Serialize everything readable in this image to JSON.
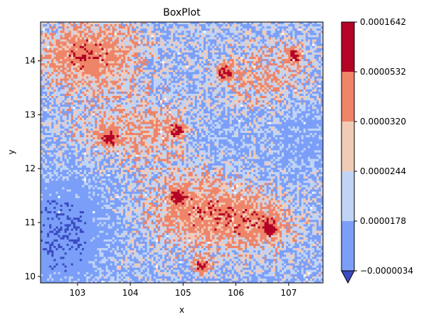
{
  "chart_data": {
    "type": "heatmap",
    "title": "BoxPlot",
    "xlabel": "x",
    "ylabel": "y",
    "xlim": [
      102.3,
      107.65
    ],
    "ylim": [
      9.88,
      14.72
    ],
    "x_ticks": [
      103,
      104,
      105,
      106,
      107
    ],
    "x_tick_labels": [
      "103",
      "104",
      "105",
      "106",
      "107"
    ],
    "y_ticks": [
      10,
      11,
      12,
      13,
      14
    ],
    "y_tick_labels": [
      "10",
      "11",
      "12",
      "13",
      "14"
    ],
    "grid": false,
    "colormap": "coolwarm (discrete, 6 levels)",
    "colorbar": {
      "position": "right",
      "extend": "min",
      "boundaries": [
        -3.4e-06,
        1.78e-05,
        2.44e-05,
        3.2e-05,
        5.32e-05,
        0.0001642
      ],
      "tick_labels": [
        "−0.0000034",
        "0.0000178",
        "0.0000244",
        "0.0000320",
        "0.0000532",
        "0.0001642"
      ],
      "level_colors": [
        "#7b9ff9",
        "#c0d4f5",
        "#f2cbb7",
        "#ee8468",
        "#b40426"
      ],
      "extend_color": "#3b4cc0"
    },
    "grid_resolution": [
      130,
      120
    ],
    "hotspots": [
      {
        "x": 103.6,
        "y": 12.55,
        "level": 4
      },
      {
        "x": 104.9,
        "y": 11.5,
        "level": 4
      },
      {
        "x": 106.65,
        "y": 10.9,
        "level": 4
      },
      {
        "x": 105.35,
        "y": 10.2,
        "level": 4
      },
      {
        "x": 107.1,
        "y": 14.1,
        "level": 4
      },
      {
        "x": 105.8,
        "y": 13.78,
        "level": 4
      },
      {
        "x": 104.9,
        "y": 12.7,
        "level": 4
      }
    ]
  }
}
